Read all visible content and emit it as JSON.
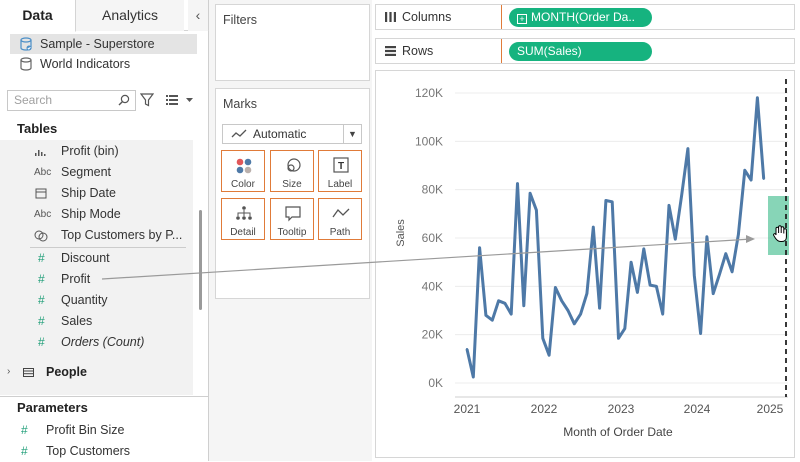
{
  "tabs": {
    "data": "Data",
    "analytics": "Analytics",
    "collapse": "‹"
  },
  "datasources": [
    {
      "label": "Sample - Superstore",
      "selected": true
    },
    {
      "label": "World Indicators",
      "selected": false
    }
  ],
  "search": {
    "placeholder": "Search"
  },
  "tables_title": "Tables",
  "fields": [
    {
      "type_icon": "bin",
      "label": "Profit (bin)"
    },
    {
      "type_icon": "Abc",
      "label": "Segment"
    },
    {
      "type_icon": "date",
      "label": "Ship Date"
    },
    {
      "type_icon": "Abc",
      "label": "Ship Mode"
    },
    {
      "type_icon": "set",
      "label": "Top Customers by P..."
    },
    {
      "type_icon": "#",
      "label": "Discount"
    },
    {
      "type_icon": "#",
      "label": "Profit"
    },
    {
      "type_icon": "#",
      "label": "Quantity"
    },
    {
      "type_icon": "#",
      "label": "Sales"
    },
    {
      "type_icon": "#",
      "label": "Orders (Count)"
    }
  ],
  "people": "People",
  "parameters_title": "Parameters",
  "parameters": [
    {
      "type_icon": "#",
      "label": "Profit Bin Size"
    },
    {
      "type_icon": "#",
      "label": "Top Customers"
    }
  ],
  "filters_title": "Filters",
  "marks": {
    "title": "Marks",
    "type": "Automatic",
    "buttons": [
      "Color",
      "Size",
      "Label",
      "Detail",
      "Tooltip",
      "Path"
    ]
  },
  "shelves": {
    "columns_label": "Columns",
    "columns_pill": "MONTH(Order Da..",
    "rows_label": "Rows",
    "rows_pill": "SUM(Sales)"
  },
  "colors": {
    "accent": "#e07b39",
    "pill": "#16b37f",
    "line": "#4e79a7"
  },
  "chart_data": {
    "type": "line",
    "xlabel": "Month of Order Date",
    "ylabel": "Sales",
    "x_ticks": [
      "2021",
      "2022",
      "2023",
      "2024",
      "2025"
    ],
    "y_ticks": [
      "0K",
      "20K",
      "40K",
      "60K",
      "80K",
      "100K",
      "120K"
    ],
    "ylim": [
      0,
      120000
    ],
    "grid": true,
    "series": [
      {
        "values": [
          14000,
          2500,
          56000,
          28000,
          26000,
          34000,
          33000,
          28500,
          82500,
          32000,
          78500,
          71500,
          18500,
          11500,
          39500,
          34000,
          30000,
          24500,
          28500,
          37000,
          64500,
          31000,
          75500,
          75000,
          18500,
          22500,
          50000,
          37500,
          55500,
          40500,
          40000,
          28500,
          73500,
          59500,
          77500,
          97000,
          44500,
          20500,
          60500,
          37000,
          45000,
          53500,
          46000,
          61500,
          88000,
          84000,
          118000,
          84500
        ]
      }
    ]
  }
}
